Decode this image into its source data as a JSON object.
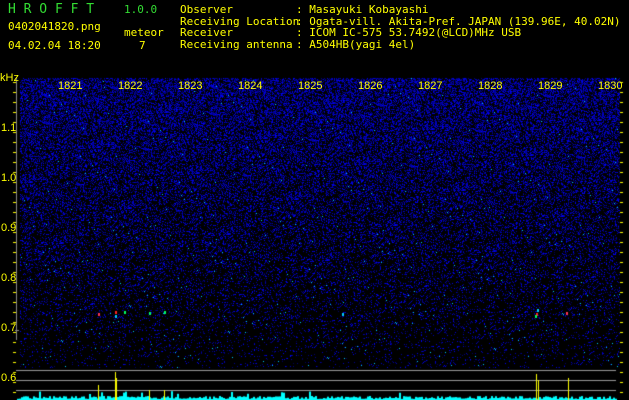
{
  "app": {
    "name": "H R O F F T",
    "version": "1.0.0"
  },
  "file": {
    "name": "0402041820.png",
    "datetime": "04.02.04 18:20"
  },
  "meteor": {
    "label": "meteor",
    "count": "7"
  },
  "info": [
    {
      "label": "Observer",
      "value": ": Masayuki Kobayashi"
    },
    {
      "label": "Receiving Location",
      "value": ": Ogata-vill. Akita-Pref. JAPAN (139.96E, 40.02N)"
    },
    {
      "label": "Receiver",
      "value": ": ICOM IC-575 53.7492(@LCD)MHz USB"
    },
    {
      "label": "Receiving antenna",
      "value": ": A504HB(yagi 4el)"
    }
  ],
  "axis": {
    "unit": "kHz",
    "freq_ticks": [
      "1.1",
      "1.0",
      "0.9",
      "0.8",
      "0.7",
      "0.6"
    ],
    "time_ticks": [
      "1821",
      "1822",
      "1823",
      "1824",
      "1825",
      "1826",
      "1827",
      "1828",
      "1829",
      "1830"
    ]
  },
  "colors": {
    "text": "#ffff00",
    "title": "#33dd33",
    "noise": "#1a1aff",
    "bars": "#00ffff",
    "peaks": "#ffff00"
  }
}
